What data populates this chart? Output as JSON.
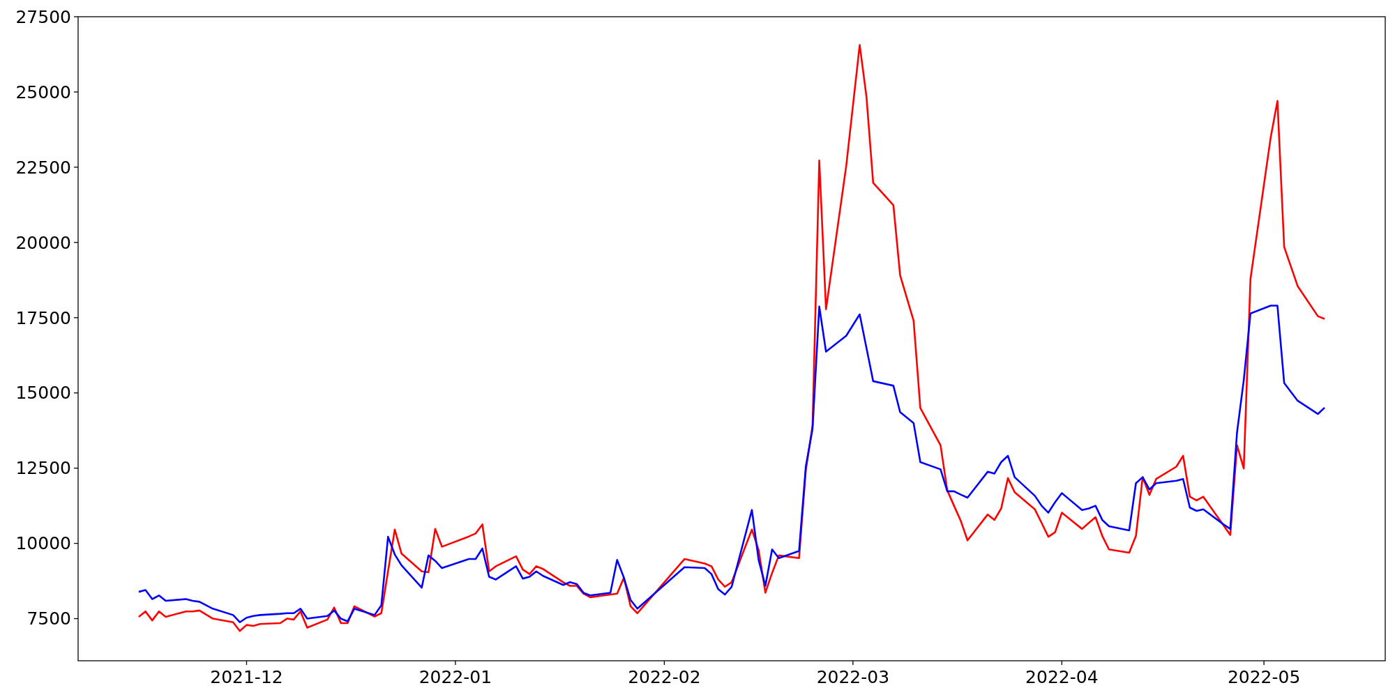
{
  "chart_data": {
    "type": "line",
    "x": [
      "2021-11-15",
      "2021-11-16",
      "2021-11-17",
      "2021-11-18",
      "2021-11-19",
      "2021-11-22",
      "2021-11-23",
      "2021-11-24",
      "2021-11-26",
      "2021-11-29",
      "2021-11-30",
      "2021-12-01",
      "2021-12-02",
      "2021-12-03",
      "2021-12-06",
      "2021-12-07",
      "2021-12-08",
      "2021-12-09",
      "2021-12-10",
      "2021-12-13",
      "2021-12-14",
      "2021-12-15",
      "2021-12-16",
      "2021-12-17",
      "2021-12-20",
      "2021-12-21",
      "2021-12-22",
      "2021-12-23",
      "2021-12-24",
      "2021-12-27",
      "2021-12-28",
      "2021-12-29",
      "2021-12-30",
      "2022-01-03",
      "2022-01-04",
      "2022-01-05",
      "2022-01-06",
      "2022-01-07",
      "2022-01-10",
      "2022-01-11",
      "2022-01-12",
      "2022-01-13",
      "2022-01-14",
      "2022-01-17",
      "2022-01-18",
      "2022-01-19",
      "2022-01-20",
      "2022-01-21",
      "2022-01-24",
      "2022-01-25",
      "2022-01-26",
      "2022-01-27",
      "2022-01-28",
      "2022-02-04",
      "2022-02-07",
      "2022-02-08",
      "2022-02-09",
      "2022-02-10",
      "2022-02-11",
      "2022-02-14",
      "2022-02-15",
      "2022-02-16",
      "2022-02-17",
      "2022-02-18",
      "2022-02-21",
      "2022-02-22",
      "2022-02-23",
      "2022-02-24",
      "2022-02-25",
      "2022-02-28",
      "2022-03-02",
      "2022-03-03",
      "2022-03-04",
      "2022-03-07",
      "2022-03-08",
      "2022-03-10",
      "2022-03-11",
      "2022-03-14",
      "2022-03-15",
      "2022-03-16",
      "2022-03-17",
      "2022-03-18",
      "2022-03-21",
      "2022-03-22",
      "2022-03-23",
      "2022-03-24",
      "2022-03-25",
      "2022-03-28",
      "2022-03-29",
      "2022-03-30",
      "2022-03-31",
      "2022-04-01",
      "2022-04-04",
      "2022-04-05",
      "2022-04-06",
      "2022-04-07",
      "2022-04-08",
      "2022-04-11",
      "2022-04-12",
      "2022-04-13",
      "2022-04-14",
      "2022-04-15",
      "2022-04-18",
      "2022-04-19",
      "2022-04-20",
      "2022-04-21",
      "2022-04-22",
      "2022-04-25",
      "2022-04-26",
      "2022-04-27",
      "2022-04-28",
      "2022-04-29",
      "2022-05-02",
      "2022-05-03",
      "2022-05-04",
      "2022-05-06",
      "2022-05-09",
      "2022-05-10"
    ],
    "series": [
      {
        "color": "#ff0000",
        "values": [
          7560,
          7740,
          7440,
          7740,
          7560,
          7740,
          7740,
          7770,
          7500,
          7380,
          7090,
          7290,
          7260,
          7320,
          7350,
          7500,
          7470,
          7740,
          7200,
          7470,
          7870,
          7350,
          7350,
          7910,
          7570,
          7680,
          9080,
          10460,
          9660,
          9070,
          9040,
          10480,
          9890,
          10230,
          10330,
          10630,
          9070,
          9240,
          9570,
          9130,
          8980,
          9240,
          9150,
          8710,
          8590,
          8590,
          8330,
          8210,
          8300,
          8330,
          8860,
          7910,
          7680,
          9480,
          9330,
          9240,
          8800,
          8560,
          8710,
          10460,
          9780,
          8360,
          9020,
          9600,
          9510,
          12430,
          13910,
          22720,
          17780,
          22540,
          26560,
          24850,
          21980,
          21240,
          18910,
          17400,
          14500,
          13260,
          11760,
          11250,
          10750,
          10100,
          10960,
          10780,
          11160,
          12170,
          11700,
          11130,
          10680,
          10220,
          10370,
          11020,
          10480,
          10680,
          10870,
          10250,
          9800,
          9690,
          10250,
          12200,
          11610,
          12140,
          12550,
          12910,
          11550,
          11430,
          11550,
          10600,
          10280,
          13260,
          12490,
          18790,
          23490,
          24700,
          19850,
          18550,
          17550,
          17460
        ]
      },
      {
        "color": "#0000ff",
        "values": [
          8390,
          8450,
          8150,
          8270,
          8090,
          8150,
          8090,
          8060,
          7830,
          7620,
          7380,
          7530,
          7590,
          7620,
          7660,
          7680,
          7680,
          7830,
          7500,
          7590,
          7770,
          7500,
          7410,
          7830,
          7620,
          7940,
          10220,
          9630,
          9270,
          8530,
          9600,
          9420,
          9180,
          9480,
          9480,
          9830,
          8890,
          8800,
          9240,
          8830,
          8890,
          9070,
          8920,
          8620,
          8710,
          8650,
          8360,
          8270,
          8360,
          9450,
          8860,
          8120,
          7830,
          9210,
          9180,
          8980,
          8480,
          8300,
          8560,
          11110,
          9450,
          8590,
          9800,
          9510,
          9750,
          12550,
          13800,
          17870,
          16370,
          16900,
          17610,
          16500,
          15390,
          15240,
          14360,
          14000,
          12700,
          12460,
          11730,
          11730,
          11620,
          11520,
          12380,
          12320,
          12700,
          12910,
          12200,
          11580,
          11250,
          11020,
          11370,
          11670,
          11110,
          11160,
          11250,
          10780,
          10570,
          10430,
          12000,
          12200,
          11790,
          12000,
          12080,
          12140,
          11190,
          11080,
          11130,
          10630,
          10480,
          13680,
          15420,
          17640,
          17900,
          17900,
          15330,
          14740,
          14300,
          14510
        ]
      }
    ],
    "xlim": [
      "2021-11-06",
      "2022-05-19"
    ],
    "xticks": [
      {
        "value": "2021-12-01",
        "label": "2021-12"
      },
      {
        "value": "2022-01-01",
        "label": "2022-01"
      },
      {
        "value": "2022-02-01",
        "label": "2022-02"
      },
      {
        "value": "2022-03-01",
        "label": "2022-03"
      },
      {
        "value": "2022-04-01",
        "label": "2022-04"
      },
      {
        "value": "2022-05-01",
        "label": "2022-05"
      }
    ],
    "ylim": [
      6100,
      27500
    ],
    "yticks": [
      7500,
      10000,
      12500,
      15000,
      17500,
      20000,
      22500,
      25000,
      27500
    ],
    "grid": false
  }
}
